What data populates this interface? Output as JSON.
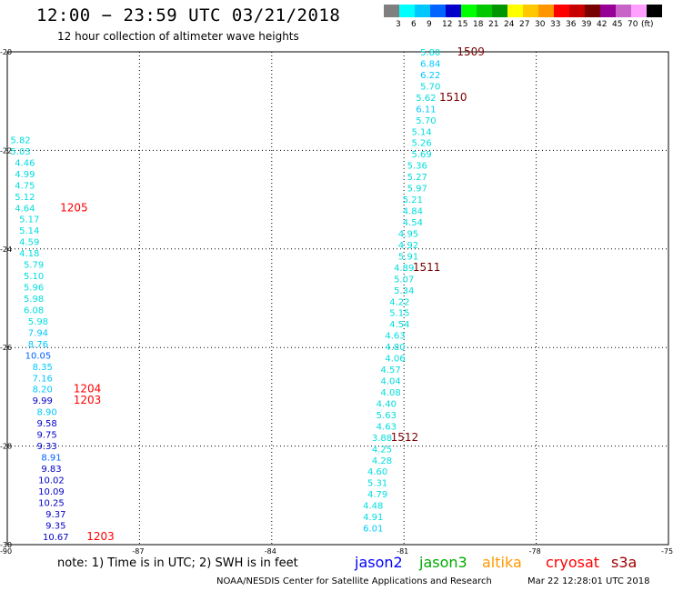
{
  "title": "12:00 − 23:59 UTC 03/21/2018",
  "subtitle": "12 hour collection of altimeter wave heights",
  "legend": {
    "unit": "(ft)",
    "colors": [
      "#7f7f7f",
      "#00ffff",
      "#00c8ff",
      "#0064ff",
      "#0000c8",
      "#00ff00",
      "#00c800",
      "#009600",
      "#ffff00",
      "#ffc800",
      "#ff9600",
      "#ff0000",
      "#c80000",
      "#780000",
      "#960096",
      "#c864c8",
      "#ffa0ff",
      "#000000"
    ],
    "labels": [
      "3",
      "6",
      "9",
      "12",
      "15",
      "18",
      "21",
      "24",
      "27",
      "30",
      "33",
      "36",
      "39",
      "42",
      "45",
      "70"
    ]
  },
  "note": "note:  1) Time is in UTC;  2) SWH is in feet",
  "satellites": [
    {
      "name": "jason2",
      "color": "#0000ff"
    },
    {
      "name": "jason3",
      "color": "#00aa00"
    },
    {
      "name": "altika",
      "color": "#ff9900"
    },
    {
      "name": "cryosat",
      "color": "#ff0000"
    },
    {
      "name": "s3a",
      "color": "#a00000"
    }
  ],
  "credit": "NOAA/NESDIS Center for Satellite Applications and Research",
  "timestamp": "Mar 22 12:28:01 UTC 2018",
  "chart_data": {
    "type": "scatter",
    "xlim": [
      -90,
      -75
    ],
    "ylim": [
      -30,
      -20
    ],
    "x_ticks": [
      "-90",
      "-87",
      "-84",
      "-81",
      "-78",
      "-75"
    ],
    "y_ticks": [
      "-20",
      "-22",
      "-24",
      "-26",
      "-28",
      "-30"
    ],
    "grid": true,
    "series": [
      {
        "name": "west track",
        "points": [
          {
            "lon": -89.7,
            "lat": -21.78,
            "label": "5.82",
            "color": "#00dddd"
          },
          {
            "lon": -89.7,
            "lat": -22.01,
            "label": "5.03",
            "color": "#00dddd"
          },
          {
            "lon": -89.6,
            "lat": -22.24,
            "label": "4.46",
            "color": "#00dddd"
          },
          {
            "lon": -89.6,
            "lat": -22.47,
            "label": "4.99",
            "color": "#00dddd"
          },
          {
            "lon": -89.6,
            "lat": -22.7,
            "label": "4.75",
            "color": "#00dddd"
          },
          {
            "lon": -89.6,
            "lat": -22.93,
            "label": "5.12",
            "color": "#00dddd"
          },
          {
            "lon": -89.6,
            "lat": -23.16,
            "label": "4.64",
            "color": "#00dddd"
          },
          {
            "lon": -89.5,
            "lat": -23.39,
            "label": "5.17",
            "color": "#00dddd"
          },
          {
            "lon": -89.5,
            "lat": -23.62,
            "label": "5.14",
            "color": "#00dddd"
          },
          {
            "lon": -89.5,
            "lat": -23.85,
            "label": "4.59",
            "color": "#00dddd"
          },
          {
            "lon": -89.5,
            "lat": -24.08,
            "label": "4.18",
            "color": "#00dddd"
          },
          {
            "lon": -89.4,
            "lat": -24.31,
            "label": "5.79",
            "color": "#00dddd"
          },
          {
            "lon": -89.4,
            "lat": -24.54,
            "label": "5.10",
            "color": "#00dddd"
          },
          {
            "lon": -89.4,
            "lat": -24.77,
            "label": "5.96",
            "color": "#00dddd"
          },
          {
            "lon": -89.4,
            "lat": -25.0,
            "label": "5.98",
            "color": "#00dddd"
          },
          {
            "lon": -89.4,
            "lat": -25.23,
            "label": "6.08",
            "color": "#00dddd"
          },
          {
            "lon": -89.3,
            "lat": -25.46,
            "label": "5.98",
            "color": "#00dddd"
          },
          {
            "lon": -89.3,
            "lat": -25.69,
            "label": "7.94",
            "color": "#00c8ff"
          },
          {
            "lon": -89.3,
            "lat": -25.92,
            "label": "8.76",
            "color": "#00c8ff"
          },
          {
            "lon": -89.3,
            "lat": -26.15,
            "label": "10.05",
            "color": "#0064ff"
          },
          {
            "lon": -89.2,
            "lat": -26.38,
            "label": "8.35",
            "color": "#00c8ff"
          },
          {
            "lon": -89.2,
            "lat": -26.61,
            "label": "7.16",
            "color": "#00c8ff"
          },
          {
            "lon": -89.2,
            "lat": -26.84,
            "label": "8.20",
            "color": "#00c8ff"
          },
          {
            "lon": -89.2,
            "lat": -27.07,
            "label": "9.99",
            "color": "#0000c8"
          },
          {
            "lon": -89.1,
            "lat": -27.3,
            "label": "8.90",
            "color": "#00c8ff"
          },
          {
            "lon": -89.1,
            "lat": -27.53,
            "label": "9.58",
            "color": "#0000c8"
          },
          {
            "lon": -89.1,
            "lat": -27.76,
            "label": "9.75",
            "color": "#0000c8"
          },
          {
            "lon": -89.1,
            "lat": -27.99,
            "label": "9.33",
            "color": "#0000c8"
          },
          {
            "lon": -89.0,
            "lat": -28.22,
            "label": "8.91",
            "color": "#0064ff"
          },
          {
            "lon": -89.0,
            "lat": -28.45,
            "label": "9.83",
            "color": "#0000c8"
          },
          {
            "lon": -89.0,
            "lat": -28.68,
            "label": "10.02",
            "color": "#0000c8"
          },
          {
            "lon": -89.0,
            "lat": -28.91,
            "label": "10.09",
            "color": "#0000c8"
          },
          {
            "lon": -89.0,
            "lat": -29.14,
            "label": "10.25",
            "color": "#0000c8"
          },
          {
            "lon": -88.9,
            "lat": -29.37,
            "label": "9.37",
            "color": "#0000c8"
          },
          {
            "lon": -88.9,
            "lat": -29.6,
            "label": "9.35",
            "color": "#0000c8"
          },
          {
            "lon": -88.9,
            "lat": -29.83,
            "label": "10.67",
            "color": "#0000c8"
          }
        ]
      },
      {
        "name": "east track",
        "points": [
          {
            "lon": -80.4,
            "lat": -20.0,
            "label": "5.80",
            "color": "#00dddd"
          },
          {
            "lon": -80.4,
            "lat": -20.23,
            "label": "6.84",
            "color": "#00c8ff"
          },
          {
            "lon": -80.4,
            "lat": -20.46,
            "label": "6.22",
            "color": "#00c8ff"
          },
          {
            "lon": -80.4,
            "lat": -20.69,
            "label": "5.70",
            "color": "#00dddd"
          },
          {
            "lon": -80.5,
            "lat": -20.92,
            "label": "5.62",
            "color": "#00dddd"
          },
          {
            "lon": -80.5,
            "lat": -21.15,
            "label": "6.11",
            "color": "#00c8ff"
          },
          {
            "lon": -80.5,
            "lat": -21.38,
            "label": "5.70",
            "color": "#00dddd"
          },
          {
            "lon": -80.6,
            "lat": -21.61,
            "label": "5.14",
            "color": "#00dddd"
          },
          {
            "lon": -80.6,
            "lat": -21.84,
            "label": "5.26",
            "color": "#00dddd"
          },
          {
            "lon": -80.6,
            "lat": -22.07,
            "label": "5.69",
            "color": "#00dddd"
          },
          {
            "lon": -80.7,
            "lat": -22.3,
            "label": "5.36",
            "color": "#00dddd"
          },
          {
            "lon": -80.7,
            "lat": -22.53,
            "label": "5.27",
            "color": "#00dddd"
          },
          {
            "lon": -80.7,
            "lat": -22.76,
            "label": "5.97",
            "color": "#00dddd"
          },
          {
            "lon": -80.8,
            "lat": -22.99,
            "label": "5.21",
            "color": "#00dddd"
          },
          {
            "lon": -80.8,
            "lat": -23.22,
            "label": "4.84",
            "color": "#00dddd"
          },
          {
            "lon": -80.8,
            "lat": -23.45,
            "label": "4.54",
            "color": "#00dddd"
          },
          {
            "lon": -80.9,
            "lat": -23.68,
            "label": "4.95",
            "color": "#00dddd"
          },
          {
            "lon": -80.9,
            "lat": -23.91,
            "label": "4.92",
            "color": "#00dddd"
          },
          {
            "lon": -80.9,
            "lat": -24.14,
            "label": "5.91",
            "color": "#00dddd"
          },
          {
            "lon": -81.0,
            "lat": -24.37,
            "label": "4.89",
            "color": "#00dddd"
          },
          {
            "lon": -81.0,
            "lat": -24.6,
            "label": "5.07",
            "color": "#00dddd"
          },
          {
            "lon": -81.0,
            "lat": -24.83,
            "label": "5.34",
            "color": "#00dddd"
          },
          {
            "lon": -81.1,
            "lat": -25.06,
            "label": "4.22",
            "color": "#00dddd"
          },
          {
            "lon": -81.1,
            "lat": -25.29,
            "label": "5.15",
            "color": "#00dddd"
          },
          {
            "lon": -81.1,
            "lat": -25.52,
            "label": "4.54",
            "color": "#00dddd"
          },
          {
            "lon": -81.2,
            "lat": -25.75,
            "label": "4.63",
            "color": "#00dddd"
          },
          {
            "lon": -81.2,
            "lat": -25.98,
            "label": "4.80",
            "color": "#00dddd"
          },
          {
            "lon": -81.2,
            "lat": -26.21,
            "label": "4.06",
            "color": "#00dddd"
          },
          {
            "lon": -81.3,
            "lat": -26.44,
            "label": "4.57",
            "color": "#00dddd"
          },
          {
            "lon": -81.3,
            "lat": -26.67,
            "label": "4.04",
            "color": "#00dddd"
          },
          {
            "lon": -81.3,
            "lat": -26.9,
            "label": "4.08",
            "color": "#00dddd"
          },
          {
            "lon": -81.4,
            "lat": -27.13,
            "label": "4.40",
            "color": "#00dddd"
          },
          {
            "lon": -81.4,
            "lat": -27.36,
            "label": "5.63",
            "color": "#00dddd"
          },
          {
            "lon": -81.4,
            "lat": -27.59,
            "label": "4.63",
            "color": "#00dddd"
          },
          {
            "lon": -81.5,
            "lat": -27.82,
            "label": "3.88",
            "color": "#00dddd"
          },
          {
            "lon": -81.5,
            "lat": -28.05,
            "label": "4.25",
            "color": "#00dddd"
          },
          {
            "lon": -81.5,
            "lat": -28.28,
            "label": "4.28",
            "color": "#00dddd"
          },
          {
            "lon": -81.6,
            "lat": -28.51,
            "label": "4.60",
            "color": "#00dddd"
          },
          {
            "lon": -81.6,
            "lat": -28.74,
            "label": "5.31",
            "color": "#00dddd"
          },
          {
            "lon": -81.6,
            "lat": -28.97,
            "label": "4.79",
            "color": "#00dddd"
          },
          {
            "lon": -81.7,
            "lat": -29.2,
            "label": "4.48",
            "color": "#00dddd"
          },
          {
            "lon": -81.7,
            "lat": -29.43,
            "label": "4.91",
            "color": "#00dddd"
          },
          {
            "lon": -81.7,
            "lat": -29.66,
            "label": "6.01",
            "color": "#00c8ff"
          }
        ]
      }
    ],
    "annotations": [
      {
        "text": "1509",
        "lon": -79.8,
        "lat": -20.0,
        "color": "#780000"
      },
      {
        "text": "1510",
        "lon": -80.2,
        "lat": -20.92,
        "color": "#780000"
      },
      {
        "text": "1511",
        "lon": -80.8,
        "lat": -24.37,
        "color": "#780000"
      },
      {
        "text": "1512",
        "lon": -81.3,
        "lat": -27.82,
        "color": "#780000"
      },
      {
        "text": "1205",
        "lon": -88.8,
        "lat": -23.16,
        "color": "#ff0000"
      },
      {
        "text": "1204",
        "lon": -88.5,
        "lat": -26.84,
        "color": "#ff0000"
      },
      {
        "text": "1203",
        "lon": -88.5,
        "lat": -27.07,
        "color": "#ff0000"
      },
      {
        "text": "1203",
        "lon": -88.2,
        "lat": -29.83,
        "color": "#ff0000"
      }
    ]
  }
}
